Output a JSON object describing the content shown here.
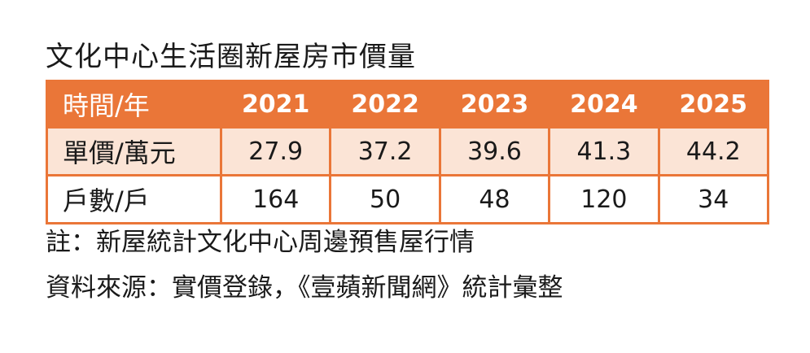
{
  "title": "文化中心生活圈新屋房市價量",
  "chart_data": {
    "type": "table",
    "title": "文化中心生活圈新屋房市價量",
    "header_label": "時間/年",
    "categories": [
      "2021",
      "2022",
      "2023",
      "2024",
      "2025"
    ],
    "series": [
      {
        "name": "單價/萬元",
        "values": [
          "27.9",
          "37.2",
          "39.6",
          "41.3",
          "44.2"
        ]
      },
      {
        "name": "戶數/戶",
        "values": [
          "164",
          "50",
          "48",
          "120",
          "34"
        ]
      }
    ]
  },
  "notes": {
    "note": "註：新屋統計文化中心周邊預售屋行情",
    "source": "資料來源：實價登錄，《壹蘋新聞網》統計彙整"
  },
  "colors": {
    "header_bg": "#ea7638",
    "row1_bg": "#fbe4d6",
    "row2_bg": "#ffffff",
    "border": "#ea7638"
  }
}
